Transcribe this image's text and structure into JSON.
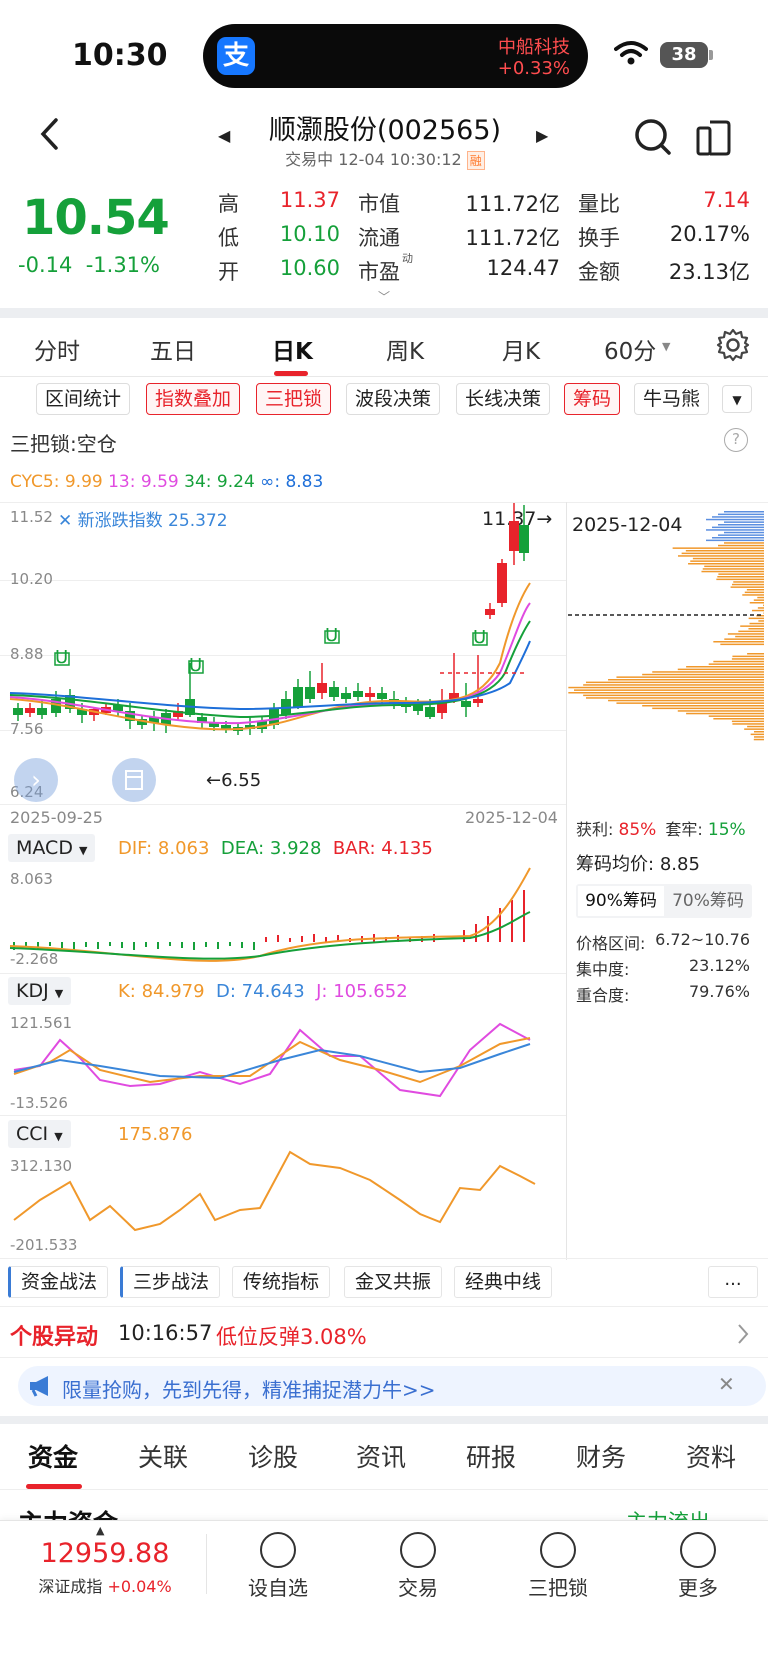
{
  "status_bar": {
    "time": "10:30",
    "island_logo": "支",
    "island_stock": "中船科技",
    "island_change": "+0.33%",
    "battery": "38"
  },
  "header": {
    "title": "顺灏股份(002565)",
    "status": "交易中 12-04 10:30:12",
    "badge": "融"
  },
  "quote": {
    "price": "10.54",
    "change": "-0.14",
    "change_pct": "-1.31%",
    "rows": [
      [
        {
          "label": "高",
          "value": "11.37",
          "cls": "up"
        },
        {
          "label": "市值",
          "value": "111.72亿",
          "cls": ""
        },
        {
          "label": "量比",
          "value": "7.14",
          "cls": "up"
        }
      ],
      [
        {
          "label": "低",
          "value": "10.10",
          "cls": "down"
        },
        {
          "label": "流通",
          "value": "111.72亿",
          "cls": ""
        },
        {
          "label": "换手",
          "value": "20.17%",
          "cls": ""
        }
      ],
      [
        {
          "label": "开",
          "value": "10.60",
          "cls": "down"
        },
        {
          "label": "市盈",
          "value": "124.47",
          "cls": ""
        },
        {
          "label": "金额",
          "value": "23.13亿",
          "cls": ""
        }
      ]
    ],
    "pe_sup": "动"
  },
  "period_tabs": [
    "分时",
    "五日",
    "日K",
    "周K",
    "月K",
    "60分"
  ],
  "active_period": 2,
  "chips": [
    {
      "label": "区间统计",
      "red": false
    },
    {
      "label": "指数叠加",
      "red": true
    },
    {
      "label": "三把锁",
      "red": true
    },
    {
      "label": "波段决策",
      "red": false
    },
    {
      "label": "长线决策",
      "red": false
    },
    {
      "label": "筹码",
      "red": true
    },
    {
      "label": "牛马熊",
      "red": false
    }
  ],
  "lock_title": "三把锁:空仓",
  "cyc": {
    "c5": "CYC5: 9.99",
    "c13": "13: 9.59",
    "c34": "34: 9.24",
    "cinf": "∞: 8.83"
  },
  "kchart": {
    "y_top": "11.52",
    "y_mid1": "10.20",
    "y_mid2": "8.88",
    "y_mid3": "7.56",
    "y_bottom": "6.24",
    "index_label": "新涨跌指数 25.372",
    "high_mark": "11.37",
    "low_mark": "6.55",
    "date_start": "2025-09-25",
    "date_end": "2025-12-04"
  },
  "chip_panel": {
    "date": "2025-12-04",
    "profit_label": "获利:",
    "profit_value": "85%",
    "trapped_label": "套牢:",
    "trapped_value": "15%",
    "avg_label": "筹码均价:",
    "avg_value": "8.85",
    "tab90": "90%筹码",
    "tab70": "70%筹码",
    "range_label": "价格区间:",
    "range_value": "6.72~10.76",
    "conc_label": "集中度:",
    "conc_value": "23.12%",
    "overlap_label": "重合度:",
    "overlap_value": "79.76%"
  },
  "macd": {
    "name": "MACD",
    "dif": "DIF: 8.063",
    "dea": "DEA: 3.928",
    "bar": "BAR: 4.135",
    "y_top": "8.063",
    "y_bottom": "-2.268"
  },
  "kdj": {
    "name": "KDJ",
    "k": "K: 84.979",
    "d": "D: 74.643",
    "j": "J: 105.652",
    "y_top": "121.561",
    "y_bottom": "-13.526"
  },
  "cci": {
    "name": "CCI",
    "value": "175.876",
    "y_top": "312.130",
    "y_bottom": "-201.533"
  },
  "strategy_tabs": [
    "资金战法",
    "三步战法",
    "传统指标",
    "金叉共振",
    "经典中线"
  ],
  "strategy_more": "...",
  "alert": {
    "label": "个股异动",
    "time": "10:16:57",
    "text": "低位反弹3.08%"
  },
  "promo": "限量抢购，先到先得，精准捕捉潜力牛>>",
  "bottom_tabs": [
    "资金",
    "关联",
    "诊股",
    "资讯",
    "研报",
    "财务",
    "资料"
  ],
  "peek": {
    "left": "主力资金",
    "right": "主力流出"
  },
  "toolbar": {
    "index_value": "12959.88",
    "index_name": "深证成指",
    "index_change": "+0.04%",
    "items": [
      "设自选",
      "交易",
      "三把锁",
      "更多"
    ]
  },
  "colors": {
    "up": "#e8232b",
    "down": "#15a03a",
    "orange": "#f0982b",
    "magenta": "#e04be0",
    "blue": "#3a86d9"
  }
}
